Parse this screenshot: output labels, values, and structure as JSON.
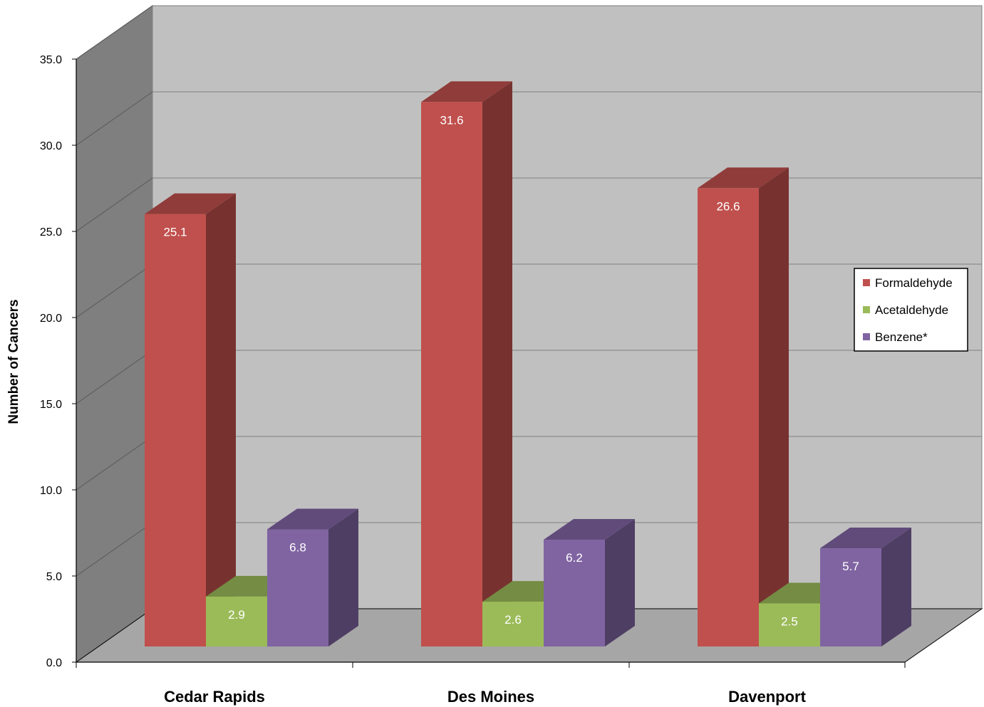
{
  "chart_data": {
    "type": "bar",
    "title": "",
    "xlabel": "",
    "ylabel": "Number of Cancers",
    "categories": [
      "Cedar Rapids",
      "Des Moines",
      "Davenport"
    ],
    "series": [
      {
        "name": "Formaldehyde",
        "values": [
          25.1,
          31.6,
          26.6
        ],
        "color": "#c0504d"
      },
      {
        "name": "Acetaldehyde",
        "values": [
          2.9,
          2.6,
          2.5
        ],
        "color": "#9bbb59"
      },
      {
        "name": "Benzene*",
        "values": [
          6.8,
          6.2,
          5.7
        ],
        "color": "#8064a2"
      }
    ],
    "ylim": [
      0,
      35
    ],
    "yticks": [
      0,
      5,
      10,
      15,
      20,
      25,
      30,
      35
    ],
    "ytick_labels": [
      "0.0",
      "5.0",
      "10.0",
      "15.0",
      "20.0",
      "25.0",
      "30.0",
      "35.0"
    ],
    "data_labels": true,
    "grid": true,
    "three_d": true,
    "legend_position": "right",
    "colors": {
      "back_wall": "#c0c0c0",
      "side_wall": "#7f7f7f",
      "floor": "#a6a6a6"
    }
  }
}
